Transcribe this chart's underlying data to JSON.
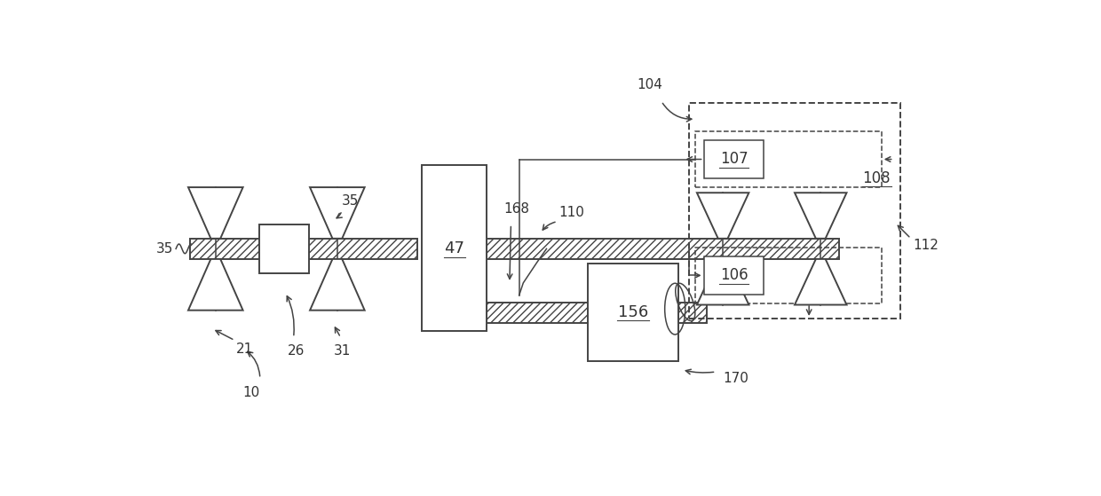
{
  "bg_color": "#ffffff",
  "line_color": "#444444",
  "label_color": "#333333",
  "fig_width": 12.4,
  "fig_height": 5.59
}
